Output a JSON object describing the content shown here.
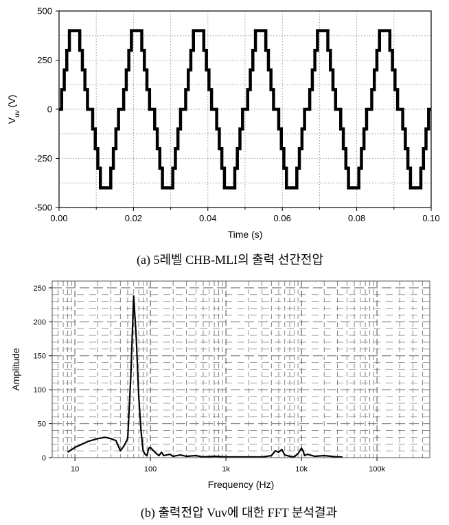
{
  "chart_data": [
    {
      "type": "line",
      "caption": "(a) 5레벨 CHB-MLI의 출력 선간전압",
      "xlabel": "Time (s)",
      "ylabel": "V_uv (V)",
      "xlim": [
        0.0,
        0.1
      ],
      "ylim": [
        -500,
        500
      ],
      "xticks": [
        "0.00",
        "0.02",
        "0.04",
        "0.06",
        "0.08",
        "0.10"
      ],
      "yticks": [
        "500",
        "250",
        "0",
        "-250",
        "-500"
      ],
      "fundamental_hz": 60,
      "step_levels": [
        0,
        100,
        200,
        300,
        400
      ],
      "step_angles_deg": [
        0,
        15,
        30,
        45,
        60
      ],
      "peak": 400,
      "grid": true,
      "color": "#000000"
    },
    {
      "type": "line",
      "caption": "(b) 출력전압 Vuv에 대한 FFT 분석결과",
      "xlabel": "Frequency (Hz)",
      "ylabel": "Amplitude",
      "xscale": "log",
      "xlim": [
        5,
        500000
      ],
      "ylim": [
        0,
        260
      ],
      "xticks": [
        "10",
        "100",
        "1k",
        "10k",
        "100k"
      ],
      "yticks": [
        "0",
        "50",
        "100",
        "150",
        "200",
        "250"
      ],
      "grid": true,
      "color": "#000000",
      "series": [
        {
          "x": [
            8,
            10,
            15,
            20,
            25,
            30,
            35,
            40,
            45,
            50,
            55,
            60,
            65,
            70,
            75,
            80,
            85,
            90,
            95,
            100,
            110,
            120,
            130,
            140,
            150,
            180,
            200,
            250,
            300,
            400,
            500,
            700,
            1000,
            2000,
            3000,
            4000,
            4500,
            5000,
            5500,
            6000,
            7000,
            8000,
            9000,
            10000,
            10500,
            11000,
            12000,
            15000,
            20000,
            30000,
            35000
          ],
          "y": [
            8,
            15,
            24,
            28,
            30,
            28,
            25,
            10,
            18,
            28,
            120,
            238,
            175,
            90,
            40,
            10,
            5,
            3,
            14,
            15,
            10,
            6,
            3,
            8,
            3,
            5,
            2,
            4,
            2,
            3,
            1,
            2,
            1,
            1,
            1,
            3,
            10,
            8,
            12,
            4,
            2,
            1,
            6,
            14,
            10,
            3,
            5,
            2,
            3,
            1,
            1
          ]
        }
      ]
    }
  ]
}
